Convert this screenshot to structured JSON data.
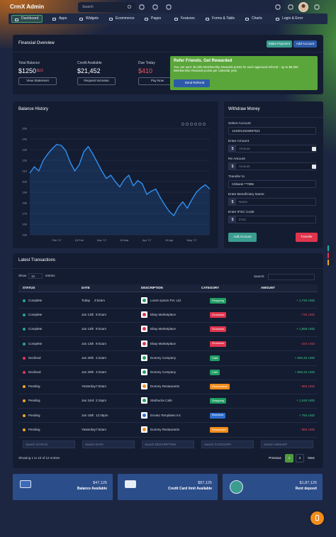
{
  "header": {
    "logo": "CrmX Admin",
    "search": "Search"
  },
  "nav": {
    "items": [
      "Dashboard",
      "Apps",
      "Widgets",
      "Ecommerce",
      "Pages",
      "Features",
      "Forms & Table",
      "Charts",
      "Login & Error"
    ],
    "active": 0
  },
  "financial": {
    "title": "Financial Overview",
    "buttons": [
      "Make Payment",
      "Add Account"
    ],
    "stats": [
      {
        "label": "Total Balance",
        "value": "$1250",
        "change": "$22",
        "button": "View Statement"
      },
      {
        "label": "Credit Available",
        "value": "$21,452",
        "button": "Request Increase"
      },
      {
        "label": "Due Today",
        "value": "$410",
        "button": "Pay Now"
      }
    ],
    "refer": {
      "title": "Refer Friends. Get Rewarded",
      "text": "You can earn: $1,000 Membership Rewards points for each approved referral – up to $5,000 Membership Rewards points per calendar year.",
      "button": "Send Referral"
    }
  },
  "chart_data": {
    "type": "line",
    "title": "Balance History",
    "categories": [
      null,
      null,
      null,
      null,
      null,
      null,
      "Feb '17",
      null,
      null,
      null,
      null,
      "15 Feb",
      null,
      null,
      null,
      null,
      "Mar '17",
      null,
      null,
      null,
      null,
      "15 Mar",
      null,
      null,
      null,
      null,
      "Apr '17",
      null,
      null,
      null,
      null,
      "15 Apr",
      null,
      null,
      null,
      null,
      "May '17",
      null,
      null,
      null,
      null
    ],
    "values": [
      208,
      214,
      210,
      220,
      226,
      231,
      235,
      234,
      229,
      218,
      210,
      216,
      228,
      233,
      226,
      218,
      210,
      203,
      206,
      200,
      195,
      202,
      206,
      196,
      201,
      198,
      188,
      191,
      193,
      185,
      178,
      172,
      168,
      176,
      181,
      175,
      183,
      190,
      194,
      197,
      193
    ],
    "color": "#2f8ff0",
    "ylim": [
      150,
      250
    ],
    "yticks": [
      150,
      160,
      170,
      180,
      190,
      200,
      210,
      220,
      230,
      240,
      250
    ],
    "grid": true
  },
  "withdraw": {
    "title": "Withdraw Money",
    "fields": [
      {
        "label": "Select Account",
        "value": "1246012545897521"
      },
      {
        "label": "Enter Amount",
        "prefix": "$",
        "placeholder": "Amount"
      },
      {
        "label": "Re Amount",
        "prefix": "$",
        "placeholder": "Amount"
      },
      {
        "label": "Transfer to",
        "value": "Citibank **7896"
      },
      {
        "label": "Enter Beneficiary Name",
        "prefix": "$",
        "placeholder": "Name"
      },
      {
        "label": "Enter IFSC Code",
        "prefix": "$",
        "placeholder": "IFSC"
      }
    ],
    "buttons": [
      "Add Account",
      "Transfer"
    ]
  },
  "transactions": {
    "title": "Latest Transactions",
    "show": "Show",
    "length": "10",
    "entries": "entries",
    "search": "Search:",
    "columns": [
      "STATUS",
      "DATE",
      "DESCRIPTION",
      "CATEGORY",
      "AMOUNT"
    ],
    "rows": [
      {
        "status": "Complete",
        "status_color": "#26a69a",
        "date": "Today",
        "time": "3:52am",
        "description": "Lorem Ipsum Pvt. Ltd.",
        "category": "Shopping",
        "category_color": "#1f9d63",
        "amount": "+ 1,740 USD",
        "amount_color": "#3ccf8e"
      },
      {
        "status": "Complete",
        "status_color": "#26a69a",
        "date": "Jan 13th",
        "time": "9:01am",
        "description": "Ebay Marketplace",
        "category": "Groceries",
        "category_color": "#e0344d",
        "amount": "- 745 USD",
        "amount_color": "#e64a5e"
      },
      {
        "status": "Complete",
        "status_color": "#26a69a",
        "date": "Jan 13th",
        "time": "9:01am",
        "description": "Ebay Marketplace",
        "category": "Groceries",
        "category_color": "#e0344d",
        "amount": "+ 1,856 USD",
        "amount_color": "#3ccf8e"
      },
      {
        "status": "Complete",
        "status_color": "#26a69a",
        "date": "Jan 13th",
        "time": "9:01am",
        "description": "Ebay Marketplace",
        "category": "Groceries",
        "category_color": "#e0344d",
        "amount": "- 324 USD",
        "amount_color": "#e64a5e"
      },
      {
        "status": "Declined",
        "status_color": "#e53950",
        "date": "Jan 29th",
        "time": "2:22am",
        "description": "Dummy Company",
        "category": "Cafe",
        "category_color": "#1f9d63",
        "amount": "+ 846.22 USD",
        "amount_color": "#3ccf8e"
      },
      {
        "status": "Declined",
        "status_color": "#e53950",
        "date": "Jan 29th",
        "time": "2:22am",
        "description": "Dummy Company",
        "category": "Cafe",
        "category_color": "#1f9d63",
        "amount": "+ 846.22 USD",
        "amount_color": "#3ccf8e"
      },
      {
        "status": "Pending",
        "status_color": "#f5a623",
        "date": "Yesterday",
        "time": "7:52am",
        "description": "Dummy Restaurants",
        "category": "Restaurants",
        "category_color": "#f28c1b",
        "amount": "- 865 USD",
        "amount_color": "#e64a5e"
      },
      {
        "status": "Pending",
        "status_color": "#f5a623",
        "date": "Jan 24rd",
        "time": "2:15pm",
        "description": "Starbucks Cafe",
        "category": "Shopping",
        "category_color": "#1f9d63",
        "amount": "+ 1,240 USD",
        "amount_color": "#3ccf8e"
      },
      {
        "status": "Pending",
        "status_color": "#f5a623",
        "date": "Jan 19th",
        "time": "12:45pm",
        "description": "Envato Templates Inc",
        "category": "Business",
        "category_color": "#2f6fd0",
        "amount": "+ 754 USD",
        "amount_color": "#3ccf8e"
      },
      {
        "status": "Pending",
        "status_color": "#f5a623",
        "date": "Yesterday",
        "time": "7:52am",
        "description": "Dummy Restaurants",
        "category": "Restaurant",
        "category_color": "#f28c1b",
        "amount": "- 865 USD",
        "amount_color": "#e64a5e"
      }
    ],
    "filters": [
      "Search STATUS",
      "Search DATE",
      "Search DESCRIPTION",
      "Search CATEGORY",
      "Search AMOUNT"
    ],
    "info": "Showing 1 to 10 of 12 entries",
    "pagination": [
      "Previous",
      "1",
      "2",
      "Next"
    ]
  },
  "summary": [
    {
      "value": "$47,125",
      "label": "Balance Available"
    },
    {
      "value": "$87,125",
      "label": "Credit Card limit Available"
    },
    {
      "value": "$1,87,125",
      "label": "Rent deposit"
    }
  ]
}
